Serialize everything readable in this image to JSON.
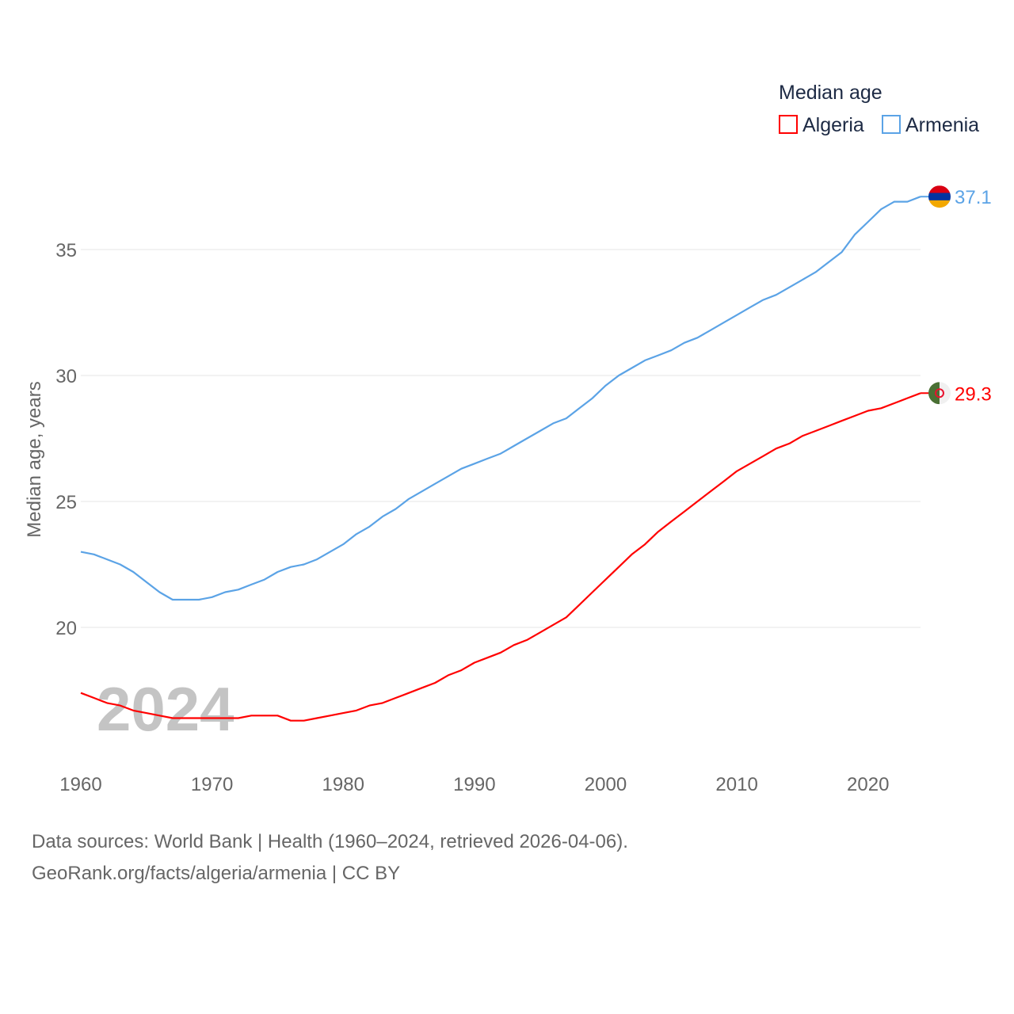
{
  "chart_data": {
    "type": "line",
    "title": "",
    "xlabel": "",
    "ylabel": "Median age, years",
    "xlim": [
      1960,
      2024
    ],
    "ylim": [
      15,
      38
    ],
    "x_ticks": [
      1960,
      1970,
      1980,
      1990,
      2000,
      2010,
      2020
    ],
    "y_ticks": [
      20,
      25,
      30,
      35
    ],
    "grid": true,
    "legend": {
      "title": "Median age",
      "placement": "top-right"
    },
    "watermark_year": "2024",
    "x": [
      1960,
      1961,
      1962,
      1963,
      1964,
      1965,
      1966,
      1967,
      1968,
      1969,
      1970,
      1971,
      1972,
      1973,
      1974,
      1975,
      1976,
      1977,
      1978,
      1979,
      1980,
      1981,
      1982,
      1983,
      1984,
      1985,
      1986,
      1987,
      1988,
      1989,
      1990,
      1991,
      1992,
      1993,
      1994,
      1995,
      1996,
      1997,
      1998,
      1999,
      2000,
      2001,
      2002,
      2003,
      2004,
      2005,
      2006,
      2007,
      2008,
      2009,
      2010,
      2011,
      2012,
      2013,
      2014,
      2015,
      2016,
      2017,
      2018,
      2019,
      2020,
      2021,
      2022,
      2023,
      2024
    ],
    "series": [
      {
        "name": "Algeria",
        "color": "#ff0000",
        "end_label": "29.3",
        "values": [
          17.4,
          17.2,
          17.0,
          16.9,
          16.7,
          16.6,
          16.5,
          16.4,
          16.4,
          16.4,
          16.4,
          16.4,
          16.4,
          16.5,
          16.5,
          16.5,
          16.3,
          16.3,
          16.4,
          16.5,
          16.6,
          16.7,
          16.9,
          17.0,
          17.2,
          17.4,
          17.6,
          17.8,
          18.1,
          18.3,
          18.6,
          18.8,
          19.0,
          19.3,
          19.5,
          19.8,
          20.1,
          20.4,
          20.9,
          21.4,
          21.9,
          22.4,
          22.9,
          23.3,
          23.8,
          24.2,
          24.6,
          25.0,
          25.4,
          25.8,
          26.2,
          26.5,
          26.8,
          27.1,
          27.3,
          27.6,
          27.8,
          28.0,
          28.2,
          28.4,
          28.6,
          28.7,
          28.9,
          29.1,
          29.3
        ]
      },
      {
        "name": "Armenia",
        "color": "#5ba3e6",
        "end_label": "37.1",
        "values": [
          23.0,
          22.9,
          22.7,
          22.5,
          22.2,
          21.8,
          21.4,
          21.1,
          21.1,
          21.1,
          21.2,
          21.4,
          21.5,
          21.7,
          21.9,
          22.2,
          22.4,
          22.5,
          22.7,
          23.0,
          23.3,
          23.7,
          24.0,
          24.4,
          24.7,
          25.1,
          25.4,
          25.7,
          26.0,
          26.3,
          26.5,
          26.7,
          26.9,
          27.2,
          27.5,
          27.8,
          28.1,
          28.3,
          28.7,
          29.1,
          29.6,
          30.0,
          30.3,
          30.6,
          30.8,
          31.0,
          31.3,
          31.5,
          31.8,
          32.1,
          32.4,
          32.7,
          33.0,
          33.2,
          33.5,
          33.8,
          34.1,
          34.5,
          34.9,
          35.6,
          36.1,
          36.6,
          36.9,
          36.9,
          37.1
        ]
      }
    ]
  },
  "footer": {
    "line1": "Data sources: World Bank | Health (1960–2024, retrieved 2026-04-06).",
    "line2": "GeoRank.org/facts/algeria/armenia | CC BY"
  }
}
